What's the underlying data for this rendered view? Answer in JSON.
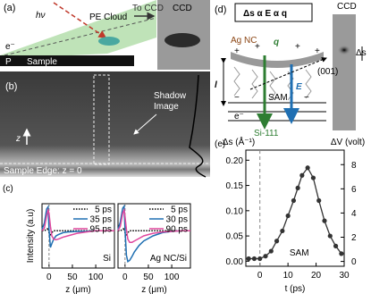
{
  "panel_a": {
    "label": "(a)",
    "photon": "hν",
    "cloud": "PE Cloud",
    "to_ccd": "To CCD",
    "ccd": "CCD",
    "electron": "e⁻",
    "p": "P",
    "sample": "Sample"
  },
  "panel_b": {
    "label": "(b)",
    "shadow": [
      "Shadow",
      "Image"
    ],
    "z": "z",
    "edge": "Sample Edge: z = 0"
  },
  "panel_d": {
    "label": "(d)",
    "relation": "Δs α E α q",
    "ccd": "CCD",
    "ag_nc": "Ag NC",
    "q": "q",
    "plus": "+",
    "minus": "−",
    "electron": "e⁻",
    "length": "l",
    "sam": "SAM",
    "field": "E",
    "substrate": "Si-111",
    "spot": "(001)",
    "delta_s": "Δs"
  },
  "chart_data": [
    {
      "type": "line",
      "label": "(c)",
      "ylabel": "Intensity (a.u)",
      "xlabel": "z (μm)",
      "annotation": "Si",
      "x": [
        -15,
        -10,
        -5,
        -2,
        0,
        3,
        6,
        10,
        15,
        20,
        30,
        40,
        60,
        80,
        100,
        120,
        140
      ],
      "xlim": [
        -15,
        140
      ],
      "xticks": [
        0,
        50,
        100
      ],
      "ylim": [
        0,
        1
      ],
      "series": [
        {
          "name": "5 ps",
          "color": "#000000",
          "dash": "dotted",
          "values": [
            0.58,
            0.58,
            0.6,
            0.62,
            0.55,
            0.5,
            0.55,
            0.58,
            0.58,
            0.58,
            0.58,
            0.58,
            0.58,
            0.58,
            0.58,
            0.58,
            0.58
          ]
        },
        {
          "name": "35 ps",
          "color": "#1f6fb2",
          "values": [
            0.6,
            0.7,
            0.92,
            0.95,
            0.6,
            0.32,
            0.38,
            0.45,
            0.5,
            0.52,
            0.55,
            0.56,
            0.57,
            0.57,
            0.58,
            0.58,
            0.58
          ]
        },
        {
          "name": "95 ps",
          "color": "#e0479e",
          "values": [
            0.58,
            0.62,
            0.82,
            0.9,
            0.85,
            0.65,
            0.5,
            0.45,
            0.44,
            0.45,
            0.48,
            0.5,
            0.54,
            0.56,
            0.58,
            0.58,
            0.58
          ]
        }
      ]
    },
    {
      "type": "line",
      "xlabel": "z (μm)",
      "annotation": "Ag NC/Si",
      "x": [
        -15,
        -10,
        -5,
        -2,
        0,
        3,
        6,
        10,
        15,
        20,
        30,
        40,
        60,
        80,
        100,
        120,
        140
      ],
      "xlim": [
        -15,
        140
      ],
      "xticks": [
        0,
        50,
        100
      ],
      "ylim": [
        0,
        1
      ],
      "series": [
        {
          "name": "5 ps",
          "color": "#000000",
          "dash": "dotted",
          "values": [
            0.58,
            0.58,
            0.6,
            0.62,
            0.55,
            0.5,
            0.55,
            0.58,
            0.58,
            0.58,
            0.58,
            0.58,
            0.58,
            0.58,
            0.58,
            0.58,
            0.58
          ]
        },
        {
          "name": "30 ps",
          "color": "#1f6fb2",
          "values": [
            0.6,
            0.72,
            0.93,
            0.96,
            0.6,
            0.2,
            0.1,
            0.12,
            0.18,
            0.25,
            0.35,
            0.42,
            0.5,
            0.55,
            0.57,
            0.58,
            0.58
          ]
        },
        {
          "name": "90 ps",
          "color": "#e0479e",
          "values": [
            0.58,
            0.65,
            0.85,
            0.9,
            0.8,
            0.6,
            0.45,
            0.4,
            0.4,
            0.42,
            0.46,
            0.5,
            0.54,
            0.56,
            0.57,
            0.58,
            0.58
          ]
        }
      ]
    },
    {
      "type": "scatter",
      "label": "(e)",
      "xlabel": "t (ps)",
      "ylabel": "Δs (Å⁻¹)",
      "y2label": "ΔV (volt)",
      "annotation": "SAM",
      "color": "#333333",
      "x": [
        -4,
        -2,
        0,
        2,
        4,
        6,
        8,
        10,
        12,
        13.5,
        15,
        17,
        19,
        21,
        23,
        25,
        27,
        29
      ],
      "values": [
        0.005,
        0.005,
        0.005,
        0.01,
        0.02,
        0.04,
        0.06,
        0.09,
        0.12,
        0.145,
        0.17,
        0.185,
        0.165,
        0.12,
        0.08,
        0.05,
        0.03,
        0.015
      ],
      "xlim": [
        -5,
        30
      ],
      "xticks": [
        0,
        10,
        20,
        30
      ],
      "ylim": [
        -0.01,
        0.22
      ],
      "yticks": [
        {
          "value": 0,
          "label": "0.00"
        },
        0.05,
        {
          "value": 0.1,
          "label": "0.10"
        },
        0.15,
        {
          "value": 0.2,
          "label": "0.20"
        }
      ],
      "y2lim": [
        -0.4,
        9.2
      ],
      "y2ticks": [
        0,
        2,
        4,
        6,
        8
      ]
    }
  ]
}
